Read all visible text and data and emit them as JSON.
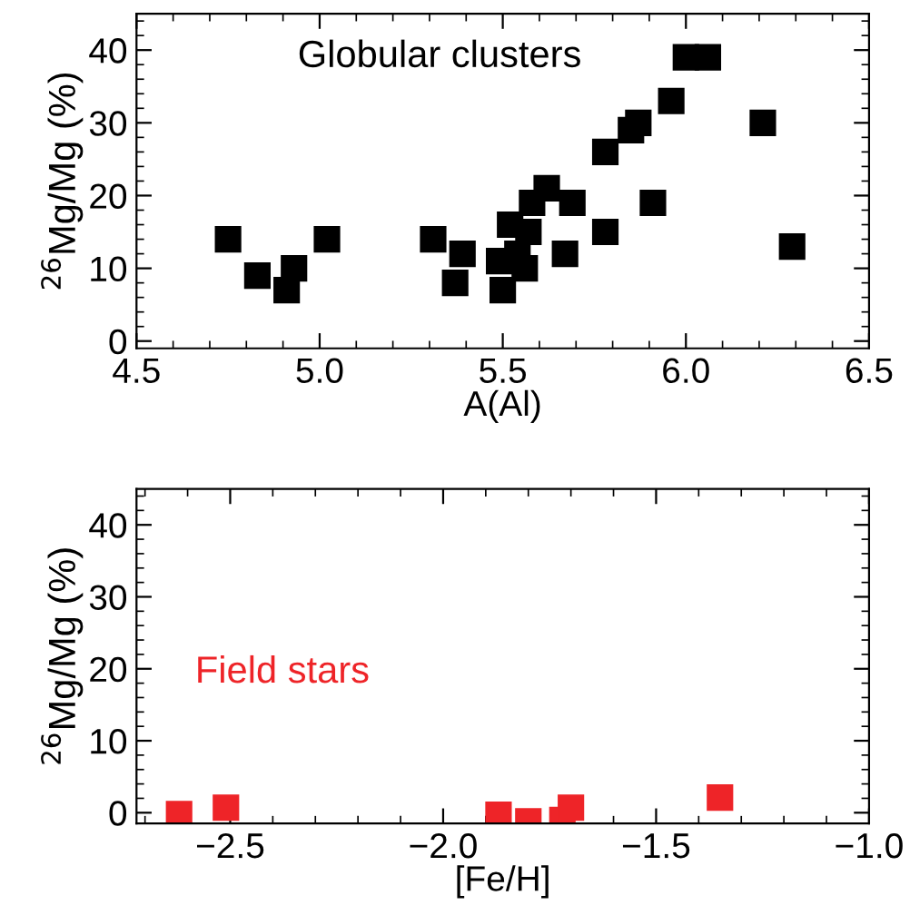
{
  "chart_data": [
    {
      "type": "scatter",
      "xlabel": "A(Al)",
      "ylabel": "$^{26}$Mg/Mg (%)",
      "annotations": [
        "Globular clusters"
      ],
      "xlim": [
        4.5,
        6.5
      ],
      "xticks": [
        {
          "value": 4.5,
          "label": "4.5"
        },
        {
          "value": 5.0,
          "label": "5.0"
        },
        {
          "value": 5.5,
          "label": "5.5"
        },
        {
          "value": 6.0,
          "label": "6.0"
        },
        {
          "value": 6.5,
          "label": "6.5"
        }
      ],
      "ylim": [
        -1,
        45
      ],
      "yticks": [
        0,
        10,
        20,
        30,
        40
      ],
      "marker": "square",
      "grid": false,
      "legend": false,
      "series": [
        {
          "color": "#000000",
          "x": [
            4.75,
            4.83,
            4.91,
            4.93,
            5.02,
            5.31,
            5.37,
            5.39,
            5.49,
            5.5,
            5.52,
            5.54,
            5.56,
            5.57,
            5.58,
            5.62,
            5.67,
            5.69,
            5.78,
            5.78,
            5.85,
            5.87,
            5.91,
            5.96,
            6.0,
            6.06,
            6.21,
            6.29
          ],
          "values": [
            14,
            9,
            7,
            10,
            14,
            14,
            8,
            12,
            11,
            7,
            16,
            12,
            10,
            15,
            19,
            21,
            12,
            19,
            26,
            15,
            29,
            30,
            19,
            33,
            39,
            39,
            30,
            13
          ]
        }
      ]
    },
    {
      "type": "scatter",
      "xlabel": "[Fe/H]",
      "ylabel": "$^{26}$Mg/Mg (%)",
      "annotations": [
        "Field stars"
      ],
      "xlim": [
        -2.72,
        -1.0
      ],
      "xticks": [
        {
          "value": -2.5,
          "label": "−2.5"
        },
        {
          "value": -2.0,
          "label": "−2.0"
        },
        {
          "value": -1.5,
          "label": "−1.5"
        },
        {
          "value": -1.0,
          "label": "−1.0"
        }
      ],
      "ylim": [
        -1.5,
        45
      ],
      "yticks": [
        0,
        10,
        20,
        30,
        40
      ],
      "marker": "square",
      "grid": false,
      "legend": false,
      "series": [
        {
          "color": "#ee2428",
          "x": [
            -2.62,
            -2.51,
            -1.87,
            -1.8,
            -1.72,
            -1.7,
            -1.35
          ],
          "values": [
            -0.2,
            0.7,
            -0.3,
            -1.2,
            -1.0,
            0.7,
            2.1
          ]
        }
      ]
    }
  ]
}
